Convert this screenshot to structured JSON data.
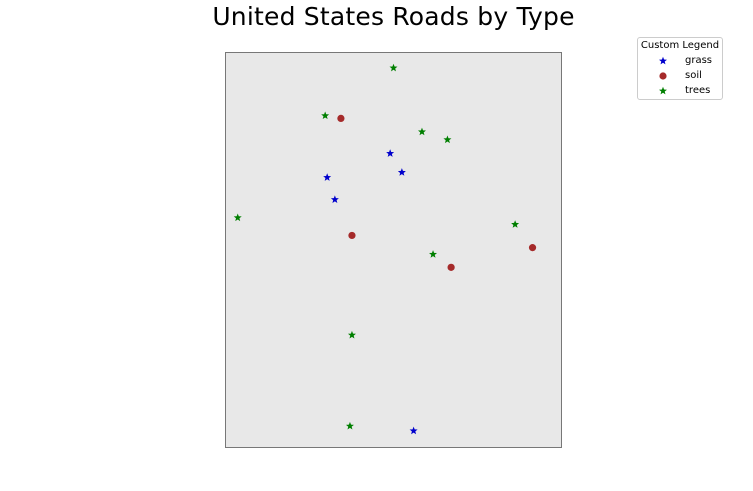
{
  "title": "United States Roads by Type",
  "legend": {
    "title": "Custom Legend",
    "placement": "top-right",
    "entries": [
      {
        "label": "grass",
        "marker": "star",
        "color": "#0000cc"
      },
      {
        "label": "soil",
        "marker": "circle",
        "color": "#a52a2a"
      },
      {
        "label": "trees",
        "marker": "star",
        "color": "#007f00"
      }
    ]
  },
  "map": {
    "background_color": "#e8e8e8",
    "border_color": "#777777"
  },
  "chart_data": {
    "type": "scatter",
    "title": "United States Roads by Type",
    "xlim": [
      0,
      1
    ],
    "ylim": [
      0,
      1
    ],
    "grid": false,
    "series": [
      {
        "name": "grass",
        "marker": "star",
        "color": "#0000cc",
        "points": [
          {
            "x": 0.49,
            "y": 0.745
          },
          {
            "x": 0.525,
            "y": 0.697
          },
          {
            "x": 0.302,
            "y": 0.684
          },
          {
            "x": 0.325,
            "y": 0.628
          },
          {
            "x": 0.56,
            "y": 0.041
          }
        ]
      },
      {
        "name": "soil",
        "marker": "circle",
        "color": "#a52a2a",
        "points": [
          {
            "x": 0.343,
            "y": 0.834
          },
          {
            "x": 0.376,
            "y": 0.537
          },
          {
            "x": 0.915,
            "y": 0.506
          },
          {
            "x": 0.672,
            "y": 0.456
          }
        ]
      },
      {
        "name": "trees",
        "marker": "star",
        "color": "#007f00",
        "points": [
          {
            "x": 0.5,
            "y": 0.962
          },
          {
            "x": 0.296,
            "y": 0.841
          },
          {
            "x": 0.585,
            "y": 0.8
          },
          {
            "x": 0.661,
            "y": 0.78
          },
          {
            "x": 0.035,
            "y": 0.582
          },
          {
            "x": 0.863,
            "y": 0.565
          },
          {
            "x": 0.618,
            "y": 0.489
          },
          {
            "x": 0.376,
            "y": 0.284
          },
          {
            "x": 0.37,
            "y": 0.053
          }
        ]
      }
    ]
  }
}
